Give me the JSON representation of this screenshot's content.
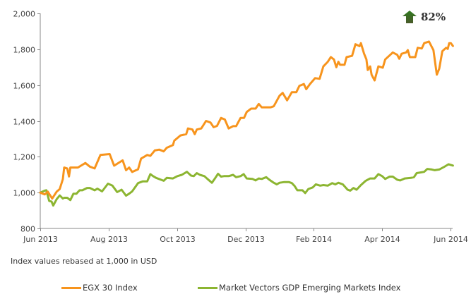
{
  "chart_data": {
    "type": "line",
    "title": "",
    "xlabel": "",
    "ylabel": "",
    "x_unit": "months since Jun 2013",
    "xlim": [
      0,
      12
    ],
    "ylim": [
      800,
      2000
    ],
    "y_ticks": [
      800,
      1000,
      1200,
      1400,
      1600,
      1800,
      2000
    ],
    "y_tick_labels": [
      "800",
      "1,000",
      "1,200",
      "1,400",
      "1,600",
      "1,800",
      "2,000"
    ],
    "x_ticks": [
      0,
      2,
      4,
      6,
      8,
      10,
      12
    ],
    "x_tick_labels": [
      "Jun 2013",
      "Aug 2013",
      "Oct 2013",
      "Dec 2013",
      "Feb 2014",
      "Apr 2014",
      "Jun 2014"
    ],
    "grid": false,
    "legend_position": "bottom",
    "annotation": {
      "text": "82%",
      "icon": "up-arrow-icon",
      "color": "#3d6b25"
    },
    "caption": "Index values rebased at 1,000 in USD",
    "series": [
      {
        "name": "EGX 30 Index",
        "color": "#f7941d",
        "points": [
          [
            0,
            1000
          ],
          [
            0.13,
            990
          ],
          [
            0.22,
            1005
          ],
          [
            0.35,
            967
          ],
          [
            0.48,
            1005
          ],
          [
            0.57,
            1020
          ],
          [
            0.66,
            1075
          ],
          [
            0.7,
            1140
          ],
          [
            0.79,
            1135
          ],
          [
            0.84,
            1090
          ],
          [
            0.88,
            1140
          ],
          [
            1.1,
            1140
          ],
          [
            1.32,
            1165
          ],
          [
            1.45,
            1145
          ],
          [
            1.59,
            1135
          ],
          [
            1.76,
            1210
          ],
          [
            2.03,
            1215
          ],
          [
            2.16,
            1150
          ],
          [
            2.41,
            1180
          ],
          [
            2.51,
            1125
          ],
          [
            2.6,
            1140
          ],
          [
            2.69,
            1115
          ],
          [
            2.86,
            1130
          ],
          [
            2.95,
            1190
          ],
          [
            3.13,
            1210
          ],
          [
            3.22,
            1205
          ],
          [
            3.35,
            1235
          ],
          [
            3.48,
            1240
          ],
          [
            3.61,
            1230
          ],
          [
            3.7,
            1250
          ],
          [
            3.88,
            1265
          ],
          [
            3.92,
            1290
          ],
          [
            4.1,
            1319
          ],
          [
            4.27,
            1326
          ],
          [
            4.32,
            1358
          ],
          [
            4.45,
            1352
          ],
          [
            4.52,
            1326
          ],
          [
            4.58,
            1352
          ],
          [
            4.71,
            1358
          ],
          [
            4.85,
            1400
          ],
          [
            4.98,
            1391
          ],
          [
            5.07,
            1365
          ],
          [
            5.17,
            1372
          ],
          [
            5.29,
            1417
          ],
          [
            5.4,
            1408
          ],
          [
            5.51,
            1358
          ],
          [
            5.64,
            1371
          ],
          [
            5.73,
            1371
          ],
          [
            5.86,
            1417
          ],
          [
            5.96,
            1417
          ],
          [
            6.04,
            1450
          ],
          [
            6.17,
            1469
          ],
          [
            6.3,
            1469
          ],
          [
            6.39,
            1495
          ],
          [
            6.48,
            1476
          ],
          [
            6.74,
            1476
          ],
          [
            6.83,
            1482
          ],
          [
            7.0,
            1541
          ],
          [
            7.09,
            1556
          ],
          [
            7.22,
            1515
          ],
          [
            7.36,
            1560
          ],
          [
            7.49,
            1560
          ],
          [
            7.58,
            1596
          ],
          [
            7.71,
            1606
          ],
          [
            7.78,
            1577
          ],
          [
            7.89,
            1606
          ],
          [
            8.04,
            1639
          ],
          [
            8.17,
            1635
          ],
          [
            8.28,
            1704
          ],
          [
            8.41,
            1730
          ],
          [
            8.5,
            1756
          ],
          [
            8.59,
            1743
          ],
          [
            8.66,
            1700
          ],
          [
            8.72,
            1730
          ],
          [
            8.77,
            1713
          ],
          [
            8.9,
            1713
          ],
          [
            8.96,
            1756
          ],
          [
            9.12,
            1763
          ],
          [
            9.22,
            1828
          ],
          [
            9.34,
            1817
          ],
          [
            9.38,
            1834
          ],
          [
            9.47,
            1776
          ],
          [
            9.54,
            1743
          ],
          [
            9.58,
            1684
          ],
          [
            9.65,
            1704
          ],
          [
            9.69,
            1658
          ],
          [
            9.78,
            1626
          ],
          [
            9.89,
            1704
          ],
          [
            10.02,
            1697
          ],
          [
            10.09,
            1743
          ],
          [
            10.26,
            1773
          ],
          [
            10.31,
            1782
          ],
          [
            10.44,
            1769
          ],
          [
            10.5,
            1747
          ],
          [
            10.57,
            1775
          ],
          [
            10.7,
            1782
          ],
          [
            10.75,
            1795
          ],
          [
            10.81,
            1756
          ],
          [
            10.97,
            1756
          ],
          [
            11.04,
            1808
          ],
          [
            11.16,
            1804
          ],
          [
            11.23,
            1834
          ],
          [
            11.37,
            1843
          ],
          [
            11.5,
            1795
          ],
          [
            11.6,
            1658
          ],
          [
            11.67,
            1691
          ],
          [
            11.76,
            1789
          ],
          [
            11.87,
            1808
          ],
          [
            11.92,
            1802
          ],
          [
            11.96,
            1834
          ],
          [
            12.01,
            1834
          ],
          [
            12.07,
            1818
          ]
        ]
      },
      {
        "name": "Market Vectors GDP Emerging Markets Index",
        "color": "#8cb531",
        "points": [
          [
            0,
            1000
          ],
          [
            0.13,
            1011
          ],
          [
            0.18,
            1013
          ],
          [
            0.26,
            954
          ],
          [
            0.33,
            950
          ],
          [
            0.38,
            928
          ],
          [
            0.48,
            963
          ],
          [
            0.57,
            984
          ],
          [
            0.66,
            967
          ],
          [
            0.7,
            971
          ],
          [
            0.79,
            971
          ],
          [
            0.88,
            958
          ],
          [
            0.97,
            994
          ],
          [
            1.06,
            994
          ],
          [
            1.15,
            1013
          ],
          [
            1.23,
            1013
          ],
          [
            1.37,
            1026
          ],
          [
            1.45,
            1026
          ],
          [
            1.59,
            1013
          ],
          [
            1.67,
            1022
          ],
          [
            1.81,
            1007
          ],
          [
            1.98,
            1050
          ],
          [
            2.11,
            1039
          ],
          [
            2.25,
            1003
          ],
          [
            2.38,
            1016
          ],
          [
            2.51,
            983
          ],
          [
            2.6,
            994
          ],
          [
            2.69,
            1007
          ],
          [
            2.86,
            1053
          ],
          [
            3.0,
            1063
          ],
          [
            3.13,
            1063
          ],
          [
            3.22,
            1103
          ],
          [
            3.3,
            1092
          ],
          [
            3.39,
            1082
          ],
          [
            3.61,
            1066
          ],
          [
            3.7,
            1082
          ],
          [
            3.88,
            1079
          ],
          [
            4.01,
            1092
          ],
          [
            4.14,
            1099
          ],
          [
            4.29,
            1116
          ],
          [
            4.41,
            1095
          ],
          [
            4.49,
            1092
          ],
          [
            4.58,
            1109
          ],
          [
            4.67,
            1099
          ],
          [
            4.8,
            1092
          ],
          [
            4.89,
            1076
          ],
          [
            5.02,
            1055
          ],
          [
            5.11,
            1079
          ],
          [
            5.2,
            1105
          ],
          [
            5.29,
            1089
          ],
          [
            5.37,
            1092
          ],
          [
            5.51,
            1092
          ],
          [
            5.64,
            1099
          ],
          [
            5.73,
            1086
          ],
          [
            5.86,
            1092
          ],
          [
            5.95,
            1103
          ],
          [
            6.04,
            1079
          ],
          [
            6.21,
            1076
          ],
          [
            6.3,
            1068
          ],
          [
            6.39,
            1079
          ],
          [
            6.48,
            1076
          ],
          [
            6.61,
            1086
          ],
          [
            6.7,
            1072
          ],
          [
            6.83,
            1055
          ],
          [
            6.92,
            1046
          ],
          [
            7.0,
            1055
          ],
          [
            7.14,
            1059
          ],
          [
            7.27,
            1059
          ],
          [
            7.36,
            1053
          ],
          [
            7.44,
            1037
          ],
          [
            7.52,
            1013
          ],
          [
            7.67,
            1013
          ],
          [
            7.75,
            997
          ],
          [
            7.84,
            1020
          ],
          [
            7.97,
            1029
          ],
          [
            8.06,
            1046
          ],
          [
            8.19,
            1039
          ],
          [
            8.28,
            1042
          ],
          [
            8.41,
            1039
          ],
          [
            8.54,
            1053
          ],
          [
            8.63,
            1046
          ],
          [
            8.72,
            1055
          ],
          [
            8.85,
            1046
          ],
          [
            8.99,
            1016
          ],
          [
            9.07,
            1011
          ],
          [
            9.16,
            1026
          ],
          [
            9.25,
            1016
          ],
          [
            9.38,
            1042
          ],
          [
            9.52,
            1066
          ],
          [
            9.65,
            1079
          ],
          [
            9.78,
            1079
          ],
          [
            9.89,
            1103
          ],
          [
            10.0,
            1092
          ],
          [
            10.09,
            1076
          ],
          [
            10.22,
            1089
          ],
          [
            10.31,
            1089
          ],
          [
            10.44,
            1072
          ],
          [
            10.53,
            1068
          ],
          [
            10.66,
            1079
          ],
          [
            10.84,
            1082
          ],
          [
            10.93,
            1086
          ],
          [
            11.01,
            1109
          ],
          [
            11.15,
            1113
          ],
          [
            11.23,
            1116
          ],
          [
            11.32,
            1132
          ],
          [
            11.45,
            1129
          ],
          [
            11.54,
            1125
          ],
          [
            11.67,
            1129
          ],
          [
            11.8,
            1142
          ],
          [
            11.94,
            1158
          ],
          [
            12.07,
            1151
          ]
        ]
      }
    ]
  }
}
